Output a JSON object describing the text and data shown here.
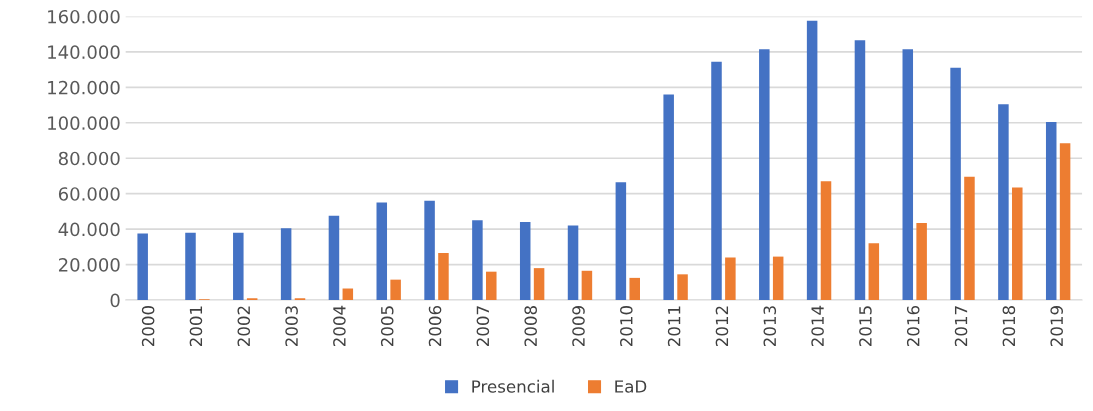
{
  "chart_data": {
    "type": "bar",
    "categories": [
      "2000",
      "2001",
      "2002",
      "2003",
      "2004",
      "2005",
      "2006",
      "2007",
      "2008",
      "2009",
      "2010",
      "2011",
      "2012",
      "2013",
      "2014",
      "2015",
      "2016",
      "2017",
      "2018",
      "2019"
    ],
    "series": [
      {
        "name": "Presencial",
        "color": "#4472c4",
        "values": [
          37500,
          38000,
          38000,
          40500,
          47500,
          55000,
          56000,
          45000,
          44000,
          42000,
          66500,
          116000,
          134500,
          141500,
          157500,
          146500,
          141500,
          131000,
          110500,
          100500
        ]
      },
      {
        "name": "EaD",
        "color": "#ed7d31",
        "values": [
          0,
          500,
          1000,
          1000,
          6500,
          11500,
          26500,
          16000,
          18000,
          16500,
          12500,
          14500,
          24000,
          24500,
          67000,
          32000,
          43500,
          69500,
          63500,
          88500
        ]
      }
    ],
    "ylim": [
      0,
      160000
    ],
    "yticks": [
      {
        "value": 0,
        "label": "0"
      },
      {
        "value": 20000,
        "label": "20.000"
      },
      {
        "value": 40000,
        "label": "40.000"
      },
      {
        "value": 60000,
        "label": "60.000"
      },
      {
        "value": 80000,
        "label": "80.000"
      },
      {
        "value": 100000,
        "label": "100.000"
      },
      {
        "value": 120000,
        "label": "120.000"
      },
      {
        "value": 140000,
        "label": "140.000"
      },
      {
        "value": 160000,
        "label": "160.000"
      }
    ],
    "grid": "y",
    "legend": "bottom"
  }
}
